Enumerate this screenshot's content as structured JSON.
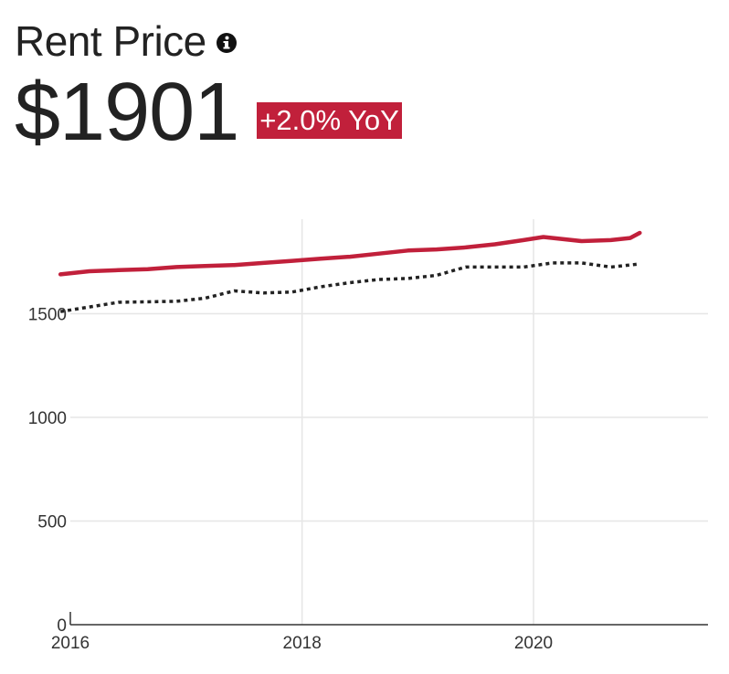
{
  "header": {
    "title": "Rent Price",
    "info_icon": "info-circle-icon",
    "price": "$1901",
    "yoy": "+2.0% YoY"
  },
  "colors": {
    "series_primary": "#c1203b",
    "series_comparison": "#222222",
    "grid": "#e6e6e6",
    "badge_bg": "#c1203b"
  },
  "chart_data": {
    "type": "line",
    "title": "",
    "xlabel": "",
    "ylabel": "",
    "xlim": [
      "2016-01-01",
      "2021-06-01"
    ],
    "ylim": [
      0,
      2000
    ],
    "x_ticks": [
      {
        "value": "2016-01-01",
        "label": "2016"
      },
      {
        "value": "2018-01-01",
        "label": "2018"
      },
      {
        "value": "2020-01-01",
        "label": "2020"
      }
    ],
    "y_ticks": [
      {
        "value": 0,
        "label": "0"
      },
      {
        "value": 500,
        "label": "500"
      },
      {
        "value": 1000,
        "label": "1000"
      },
      {
        "value": 1500,
        "label": "1500"
      }
    ],
    "grid": true,
    "legend": "none",
    "series": [
      {
        "style": "solid",
        "color": "#c1203b",
        "points": [
          {
            "x": "2015-12-01",
            "y": 1690
          },
          {
            "x": "2016-03-01",
            "y": 1705
          },
          {
            "x": "2016-06-01",
            "y": 1710
          },
          {
            "x": "2016-09-01",
            "y": 1715
          },
          {
            "x": "2016-12-01",
            "y": 1725
          },
          {
            "x": "2017-03-01",
            "y": 1730
          },
          {
            "x": "2017-06-01",
            "y": 1735
          },
          {
            "x": "2017-09-01",
            "y": 1745
          },
          {
            "x": "2017-12-01",
            "y": 1755
          },
          {
            "x": "2018-03-01",
            "y": 1765
          },
          {
            "x": "2018-06-01",
            "y": 1775
          },
          {
            "x": "2018-09-01",
            "y": 1790
          },
          {
            "x": "2018-12-01",
            "y": 1805
          },
          {
            "x": "2019-03-01",
            "y": 1810
          },
          {
            "x": "2019-06-01",
            "y": 1820
          },
          {
            "x": "2019-09-01",
            "y": 1835
          },
          {
            "x": "2019-12-01",
            "y": 1855
          },
          {
            "x": "2020-02-01",
            "y": 1870
          },
          {
            "x": "2020-06-01",
            "y": 1850
          },
          {
            "x": "2020-09-01",
            "y": 1855
          },
          {
            "x": "2020-11-01",
            "y": 1865
          },
          {
            "x": "2020-12-01",
            "y": 1890
          }
        ]
      },
      {
        "style": "dotted",
        "color": "#222222",
        "points": [
          {
            "x": "2015-12-01",
            "y": 1510
          },
          {
            "x": "2016-06-01",
            "y": 1555
          },
          {
            "x": "2016-12-01",
            "y": 1560
          },
          {
            "x": "2017-03-01",
            "y": 1575
          },
          {
            "x": "2017-06-01",
            "y": 1610
          },
          {
            "x": "2017-09-01",
            "y": 1600
          },
          {
            "x": "2017-12-01",
            "y": 1605
          },
          {
            "x": "2018-03-01",
            "y": 1630
          },
          {
            "x": "2018-06-01",
            "y": 1650
          },
          {
            "x": "2018-09-01",
            "y": 1665
          },
          {
            "x": "2018-12-01",
            "y": 1670
          },
          {
            "x": "2019-03-01",
            "y": 1685
          },
          {
            "x": "2019-06-01",
            "y": 1725
          },
          {
            "x": "2019-12-01",
            "y": 1725
          },
          {
            "x": "2020-03-01",
            "y": 1745
          },
          {
            "x": "2020-06-01",
            "y": 1745
          },
          {
            "x": "2020-09-01",
            "y": 1725
          },
          {
            "x": "2020-12-01",
            "y": 1740
          }
        ]
      }
    ]
  }
}
